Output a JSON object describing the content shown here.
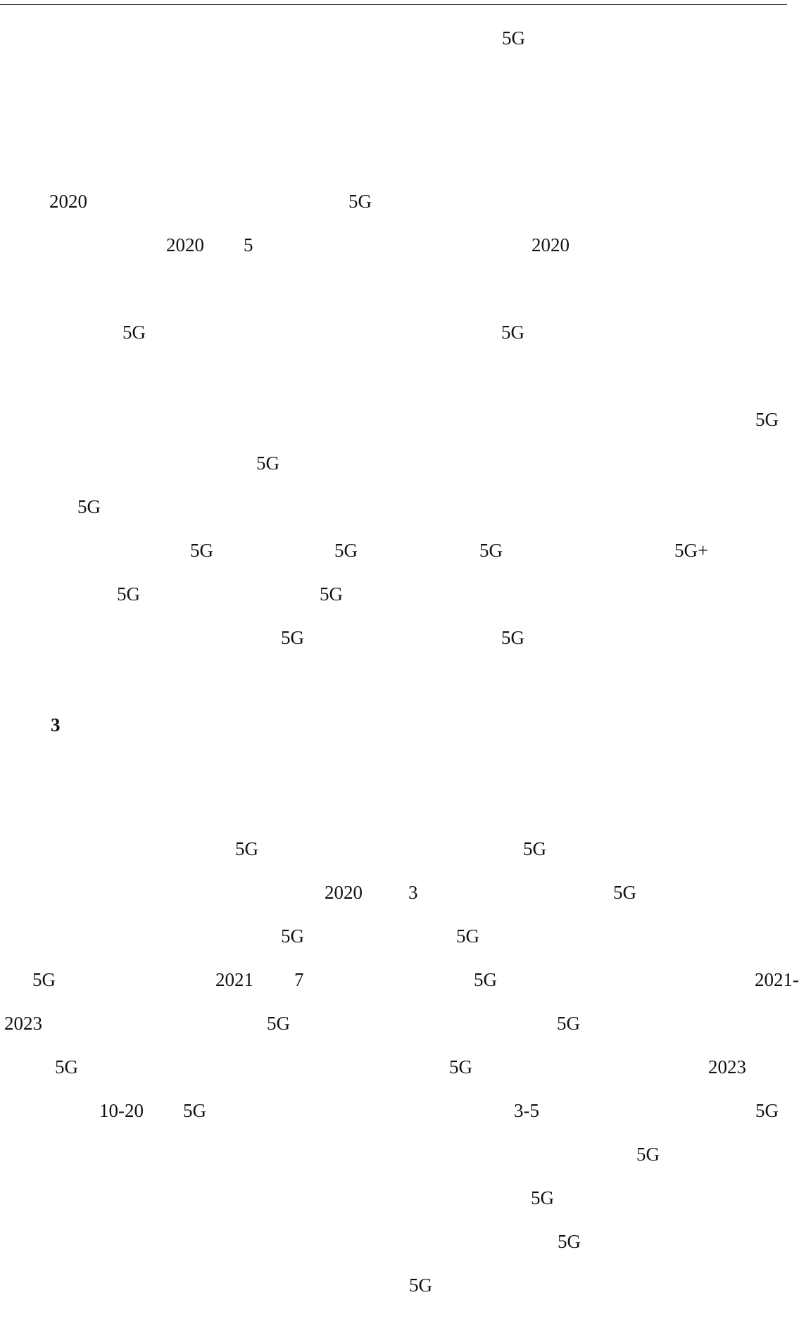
{
  "page": {
    "fragments": [
      {
        "text": "5G"
      },
      {
        "text": "2020"
      },
      {
        "text": "5G"
      },
      {
        "text": "2020"
      },
      {
        "text": "5"
      },
      {
        "text": "2020"
      },
      {
        "text": "5G"
      },
      {
        "text": "5G"
      },
      {
        "text": "5G"
      },
      {
        "text": "5G"
      },
      {
        "text": "5G"
      },
      {
        "text": "5G"
      },
      {
        "text": "5G"
      },
      {
        "text": "5G"
      },
      {
        "text": "5G+"
      },
      {
        "text": "5G"
      },
      {
        "text": "5G"
      },
      {
        "text": "5G"
      },
      {
        "text": "5G"
      },
      {
        "text": "3",
        "bold": true
      },
      {
        "text": "5G"
      },
      {
        "text": "5G"
      },
      {
        "text": "2020"
      },
      {
        "text": "3"
      },
      {
        "text": "5G"
      },
      {
        "text": "5G"
      },
      {
        "text": "5G"
      },
      {
        "text": "5G"
      },
      {
        "text": "2021"
      },
      {
        "text": "7"
      },
      {
        "text": "5G"
      },
      {
        "text": "2021-"
      },
      {
        "text": "2023"
      },
      {
        "text": "5G"
      },
      {
        "text": "5G"
      },
      {
        "text": "5G"
      },
      {
        "text": "5G"
      },
      {
        "text": "2023"
      },
      {
        "text": "10-20"
      },
      {
        "text": "5G"
      },
      {
        "text": "3-5"
      },
      {
        "text": "5G"
      },
      {
        "text": "5G"
      },
      {
        "text": "5G"
      },
      {
        "text": "5G"
      },
      {
        "text": "5G"
      }
    ]
  }
}
